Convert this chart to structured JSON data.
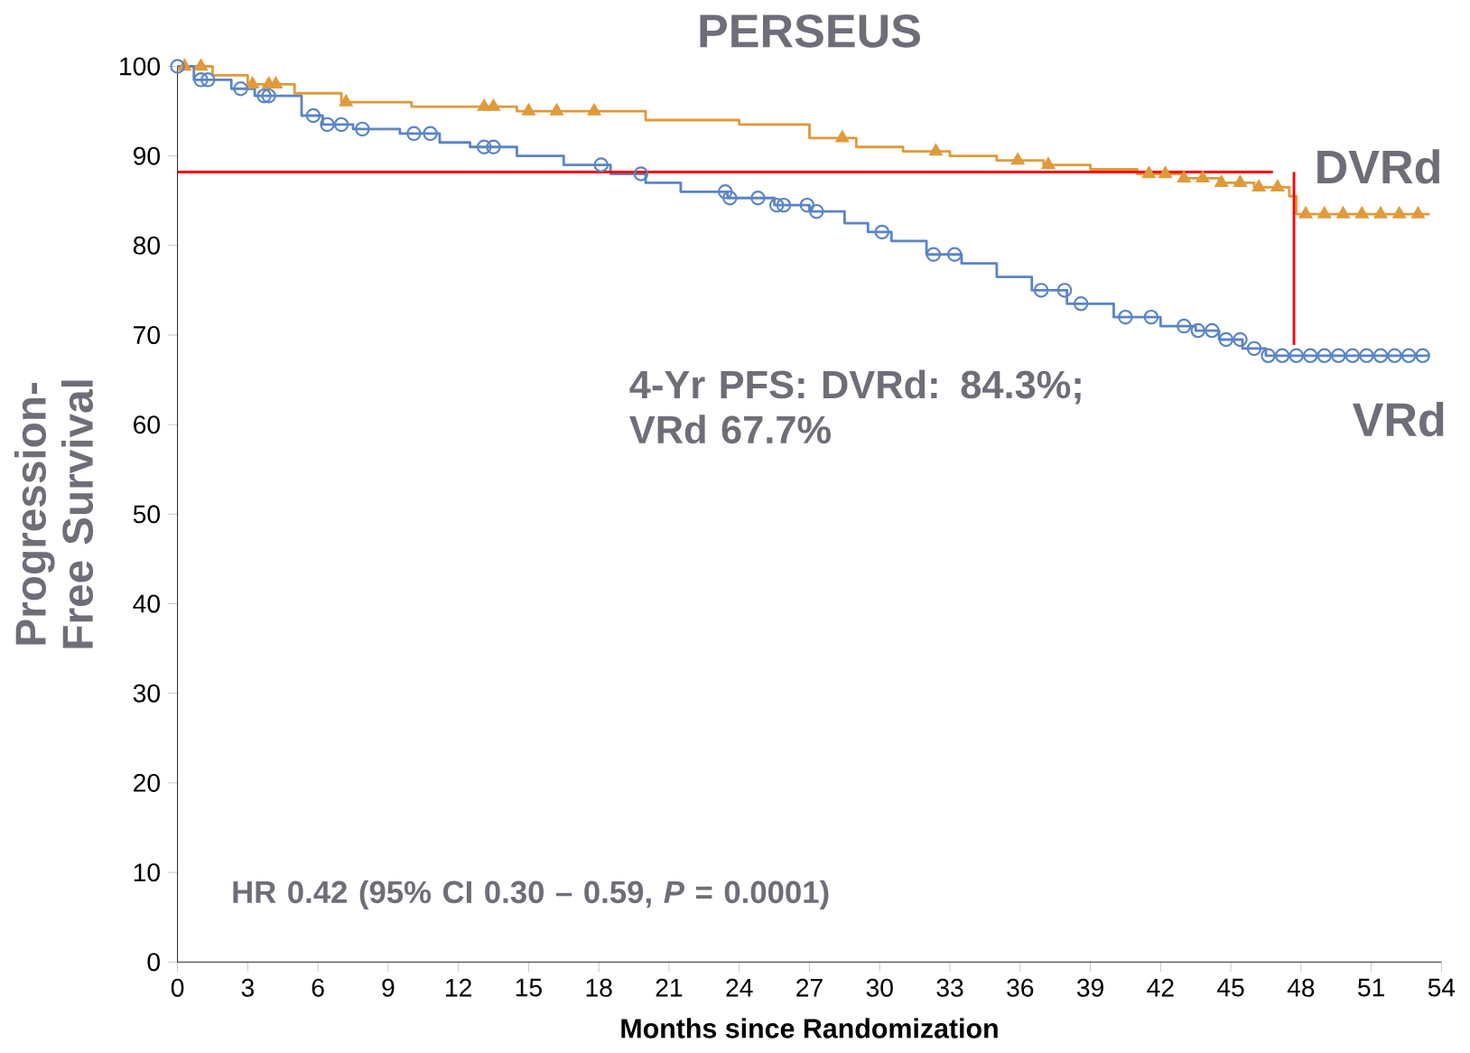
{
  "chart_data": {
    "type": "step",
    "title": "PERSEUS",
    "xlabel": "Months since Randomization",
    "ylabel": "Progression-Free Survival",
    "annotations": [
      "4-Yr PFS: DVRd: 84.3%; VRd 67.7%",
      "HR 0.42 (95% CI 0.30 – 0.59, *P* = 0.0001)"
    ],
    "xlim": [
      0,
      54
    ],
    "ylim": [
      0,
      100
    ],
    "xticks": [
      0,
      3,
      6,
      9,
      12,
      15,
      18,
      21,
      24,
      27,
      30,
      33,
      36,
      39,
      42,
      45,
      48,
      51,
      54
    ],
    "yticks": [
      0,
      10,
      20,
      30,
      40,
      50,
      60,
      70,
      80,
      90,
      100
    ],
    "series": [
      {
        "name": "DVRd",
        "color": "#e09a3a",
        "x": [
          0,
          1.5,
          3.0,
          5.0,
          7.0,
          10,
          14.5,
          20,
          24,
          27,
          29,
          31,
          33,
          35,
          37,
          39,
          41,
          43,
          44.5,
          46,
          47.5,
          47.8,
          53.5
        ],
        "values": [
          100,
          99,
          98,
          97,
          96,
          95.5,
          95,
          94,
          93.5,
          92,
          91,
          90.5,
          90,
          89.5,
          89,
          88.5,
          88,
          87.5,
          87,
          86.5,
          85.5,
          83.5,
          83.5
        ]
      },
      {
        "name": "VRd",
        "color": "#5b84c4",
        "x": [
          0,
          0.7,
          2.3,
          3.3,
          5.3,
          6.2,
          7.5,
          9.5,
          11.2,
          12.5,
          14.5,
          16.5,
          18.5,
          20,
          21.5,
          23.5,
          25.5,
          27,
          28.5,
          29.5,
          30.5,
          32,
          33.5,
          35,
          36.5,
          38,
          40,
          42,
          43.5,
          44.5,
          45.5,
          46.5,
          53.5
        ],
        "values": [
          100,
          98.5,
          97.5,
          96.7,
          94.5,
          93.5,
          93,
          92.5,
          91.5,
          91,
          90,
          89,
          88,
          87,
          86,
          85.3,
          84.5,
          83.8,
          82.5,
          81.5,
          80.5,
          79,
          78,
          76.5,
          75,
          73.5,
          72,
          71,
          70.5,
          69.5,
          68.5,
          67.7,
          67.7
        ]
      },
      {
        "type": "scatter",
        "marker": "triangle",
        "color": "#e09a3a",
        "x": [
          0.3,
          1.0,
          3.2,
          3.9,
          4.2,
          7.2,
          13.1,
          13.5,
          15.0,
          16.2,
          17.8,
          28.4,
          32.4,
          35.9,
          37.2,
          41.5,
          42.2,
          43.0,
          43.8,
          44.6,
          45.4,
          46.2,
          47.0,
          48.2,
          49.0,
          49.8,
          50.6,
          51.4,
          52.2,
          53.0
        ],
        "values": [
          100,
          100,
          98,
          98,
          98,
          96,
          95.5,
          95.5,
          95,
          95,
          95,
          92,
          90.5,
          89.5,
          89,
          88,
          88,
          87.5,
          87.5,
          87,
          87,
          86.5,
          86.5,
          83.5,
          83.5,
          83.5,
          83.5,
          83.5,
          83.5,
          83.5
        ]
      },
      {
        "type": "scatter",
        "marker": "circle",
        "color": "#5b84c4",
        "x": [
          0,
          1.0,
          1.3,
          2.7,
          3.7,
          3.9,
          5.8,
          6.4,
          7.0,
          7.9,
          10.1,
          10.8,
          13.1,
          13.5,
          18.1,
          19.8,
          23.4,
          23.6,
          24.8,
          25.6,
          25.9,
          26.9,
          27.3,
          30.1,
          32.3,
          33.2,
          36.9,
          37.9,
          38.6,
          40.5,
          41.6,
          43.0,
          43.6,
          44.2,
          44.8,
          45.4,
          46.0,
          46.6,
          47.2,
          47.8,
          48.4,
          49,
          49.6,
          50.2,
          50.8,
          51.4,
          52,
          52.6,
          53.2
        ],
        "values": [
          100,
          98.5,
          98.5,
          97.5,
          96.7,
          96.7,
          94.5,
          93.5,
          93.5,
          93,
          92.5,
          92.5,
          91,
          91,
          89,
          88,
          86,
          85.3,
          85.3,
          84.5,
          84.5,
          84.5,
          83.8,
          81.5,
          79,
          79,
          75,
          75,
          73.5,
          72,
          72,
          71,
          70.5,
          70.5,
          69.5,
          69.5,
          68.5,
          67.7,
          67.7,
          67.7,
          67.7,
          67.7,
          67.7,
          67.7,
          67.7,
          67.7,
          67.7,
          67.7,
          67.7
        ]
      },
      {
        "type": "line",
        "color": "#ff0000",
        "x": [
          0,
          46.8
        ],
        "values": [
          88.2,
          88.2
        ]
      },
      {
        "type": "line",
        "color": "#ff0000",
        "x": [
          47.7,
          47.7
        ],
        "values": [
          88.2,
          68.9
        ]
      }
    ]
  }
}
